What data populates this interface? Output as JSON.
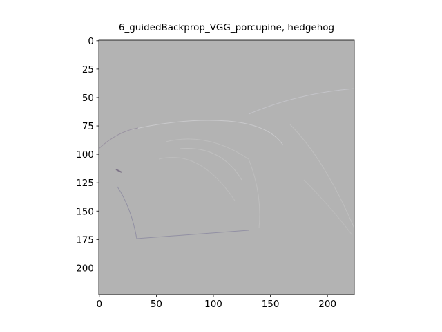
{
  "chart_data": {
    "type": "image",
    "title": "6_guidedBackprop_VGG_porcupine, hedgehog",
    "xlim": [
      -0.5,
      223.5
    ],
    "xticks": [
      0,
      50,
      100,
      150,
      200
    ],
    "ylim": [
      223.5,
      -0.5
    ],
    "yticks": [
      0,
      25,
      50,
      75,
      100,
      125,
      150,
      175,
      200
    ]
  }
}
